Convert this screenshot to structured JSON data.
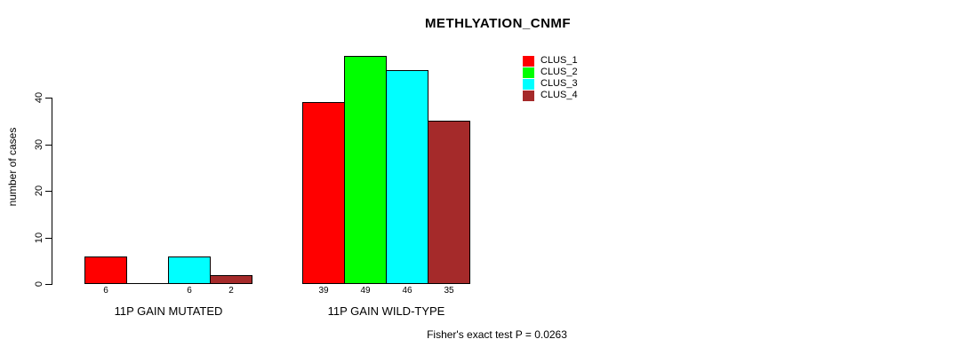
{
  "figure": {
    "background_color": "#FFFFFF",
    "text_color": "#000000"
  },
  "chart_data": {
    "type": "bar",
    "title": "METHLYATION_CNMF",
    "xlabel": "",
    "ylabel": "number of cases",
    "categories": [
      "11P GAIN MUTATED",
      "11P GAIN WILD-TYPE"
    ],
    "series": [
      {
        "name": "CLUS_1",
        "color": "#FF0000",
        "values": [
          6,
          39
        ]
      },
      {
        "name": "CLUS_2",
        "color": "#00FF00",
        "values": [
          0,
          49
        ]
      },
      {
        "name": "CLUS_3",
        "color": "#00FFFF",
        "values": [
          6,
          46
        ]
      },
      {
        "name": "CLUS_4",
        "color": "#A52A2A",
        "values": [
          2,
          35
        ]
      }
    ],
    "ylim": [
      0,
      40
    ],
    "yticks": [
      0,
      10,
      20,
      30,
      40
    ],
    "grid": false,
    "legend_position": "top-right",
    "bar_border_color": "#000000",
    "value_labels_shown": true,
    "annotation": "Fisher's exact test P = 0.0263"
  }
}
